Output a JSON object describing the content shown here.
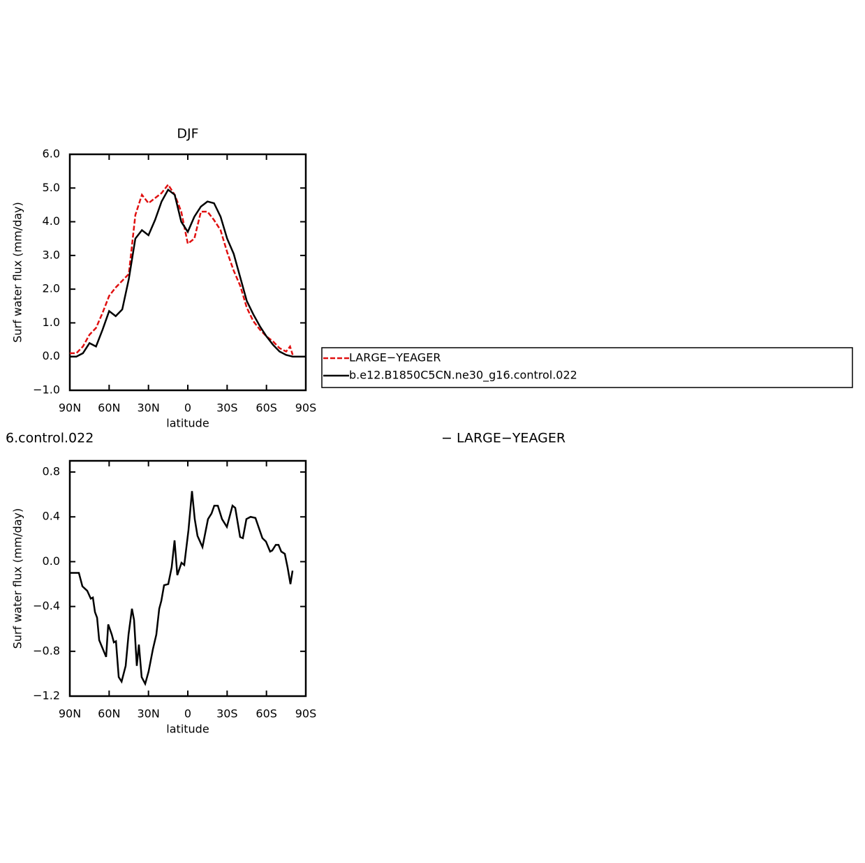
{
  "chart_data": [
    {
      "type": "line",
      "title": "DJF",
      "xlabel": "latitude",
      "ylabel": "Surf water flux (mm/day)",
      "xlim": [
        90,
        -90
      ],
      "xticks": [
        {
          "value": 90,
          "label": "90N"
        },
        {
          "value": 60,
          "label": "60N"
        },
        {
          "value": 30,
          "label": "30N"
        },
        0,
        {
          "value": -30,
          "label": "30S"
        },
        {
          "value": -60,
          "label": "60S"
        },
        {
          "value": -90,
          "label": "90S"
        }
      ],
      "ylim": [
        -1,
        6
      ],
      "yticks": [
        {
          "value": -1,
          "label": "−1.0"
        },
        {
          "value": 0,
          "label": "0.0"
        },
        {
          "value": 1,
          "label": "1.0"
        },
        {
          "value": 2,
          "label": "2.0"
        },
        {
          "value": 3,
          "label": "3.0"
        },
        {
          "value": 4,
          "label": "4.0"
        },
        {
          "value": 5,
          "label": "5.0"
        },
        {
          "value": 6,
          "label": "6.0"
        }
      ],
      "legend": "outside right",
      "series": [
        {
          "name": "LARGE−YEAGER",
          "color": "#e01010",
          "dash": true,
          "x": [
            90,
            85,
            80,
            75,
            70,
            65,
            60,
            55,
            50,
            45,
            40,
            35,
            30,
            25,
            20,
            15,
            10,
            5,
            0,
            -5,
            -10,
            -15,
            -20,
            -25,
            -30,
            -35,
            -40,
            -45,
            -50,
            -55,
            -60,
            -65,
            -70,
            -75,
            -78,
            -80
          ],
          "values": [
            0.1,
            0.1,
            0.3,
            0.65,
            0.85,
            1.3,
            1.8,
            2.05,
            2.25,
            2.45,
            4.2,
            4.8,
            4.55,
            4.7,
            4.85,
            5.1,
            4.8,
            4.3,
            3.35,
            3.5,
            4.3,
            4.3,
            4.05,
            3.75,
            3.1,
            2.55,
            2.1,
            1.45,
            1.05,
            0.8,
            0.6,
            0.45,
            0.25,
            0.15,
            0.3,
            0.05
          ]
        },
        {
          "name": "b.e12.B1850C5CN.ne30_g16.control.022",
          "color": "#000000",
          "dash": false,
          "x": [
            90,
            85,
            80,
            75,
            70,
            65,
            60,
            55,
            50,
            45,
            40,
            35,
            30,
            25,
            20,
            15,
            10,
            5,
            0,
            -5,
            -10,
            -15,
            -20,
            -25,
            -30,
            -35,
            -40,
            -45,
            -50,
            -55,
            -60,
            -65,
            -70,
            -75,
            -80,
            -85,
            -90
          ],
          "values": [
            0.0,
            0.0,
            0.1,
            0.4,
            0.3,
            0.8,
            1.35,
            1.2,
            1.4,
            2.3,
            3.5,
            3.75,
            3.6,
            4.05,
            4.6,
            4.95,
            4.8,
            4.0,
            3.7,
            4.15,
            4.45,
            4.6,
            4.55,
            4.15,
            3.5,
            3.05,
            2.35,
            1.65,
            1.25,
            0.9,
            0.6,
            0.35,
            0.15,
            0.05,
            0.0,
            0.0,
            0.0
          ]
        }
      ]
    },
    {
      "type": "line",
      "title_left": "6.control.022",
      "title_right": "− LARGE−YEAGER",
      "xlabel": "latitude",
      "ylabel": "Surf water flux (mm/day)",
      "xlim": [
        90,
        -90
      ],
      "xticks": [
        {
          "value": 90,
          "label": "90N"
        },
        {
          "value": 60,
          "label": "60N"
        },
        {
          "value": 30,
          "label": "30N"
        },
        0,
        {
          "value": -30,
          "label": "30S"
        },
        {
          "value": -60,
          "label": "60S"
        },
        {
          "value": -90,
          "label": "90S"
        }
      ],
      "ylim": [
        -1.2,
        0.9
      ],
      "yticks": [
        {
          "value": -1.2,
          "label": "−1.2"
        },
        {
          "value": -0.8,
          "label": "−0.8"
        },
        {
          "value": -0.4,
          "label": "−0.4"
        },
        {
          "value": 0,
          "label": "0.0"
        },
        0.4,
        0.8
      ],
      "series": [
        {
          "color": "#000000",
          "dash": false,
          "x": [
            90,
            83.1,
            80.4,
            76.7,
            74,
            72.4,
            70.8,
            69.2,
            67.6,
            62.3,
            60.7,
            58,
            56.4,
            54.8,
            52.7,
            50.5,
            47.4,
            45.2,
            42.6,
            41,
            38.9,
            37.3,
            35.2,
            32.5,
            29.9,
            26.6,
            24,
            21.8,
            20.2,
            18.1,
            14.9,
            12.3,
            10.1,
            8,
            4.8,
            2.7,
            -0.5,
            -3.2,
            -5.3,
            -7.4,
            -11.2,
            -15.4,
            -18.1,
            -20.2,
            -22.9,
            -26.1,
            -29.8,
            -34.1,
            -36.2,
            -39.9,
            -42,
            -44.7,
            -47.9,
            -51.6,
            -56.9,
            -59.6,
            -62.8,
            -64.4,
            -67.1,
            -69.2,
            -71.3,
            -74,
            -76.1,
            -78.3,
            -79.9
          ],
          "values": [
            -0.1,
            -0.1,
            -0.22,
            -0.26,
            -0.33,
            -0.32,
            -0.45,
            -0.5,
            -0.7,
            -0.85,
            -0.56,
            -0.65,
            -0.72,
            -0.71,
            -1.03,
            -1.07,
            -0.93,
            -0.65,
            -0.42,
            -0.52,
            -0.93,
            -0.74,
            -1.03,
            -1.09,
            -0.98,
            -0.78,
            -0.65,
            -0.42,
            -0.35,
            -0.21,
            -0.2,
            -0.05,
            0.19,
            -0.12,
            -0.01,
            -0.03,
            0.28,
            0.63,
            0.38,
            0.23,
            0.13,
            0.38,
            0.43,
            0.5,
            0.5,
            0.38,
            0.31,
            0.5,
            0.48,
            0.22,
            0.21,
            0.38,
            0.4,
            0.39,
            0.21,
            0.18,
            0.09,
            0.1,
            0.15,
            0.15,
            0.09,
            0.07,
            -0.05,
            -0.2,
            -0.08
          ]
        }
      ]
    }
  ]
}
